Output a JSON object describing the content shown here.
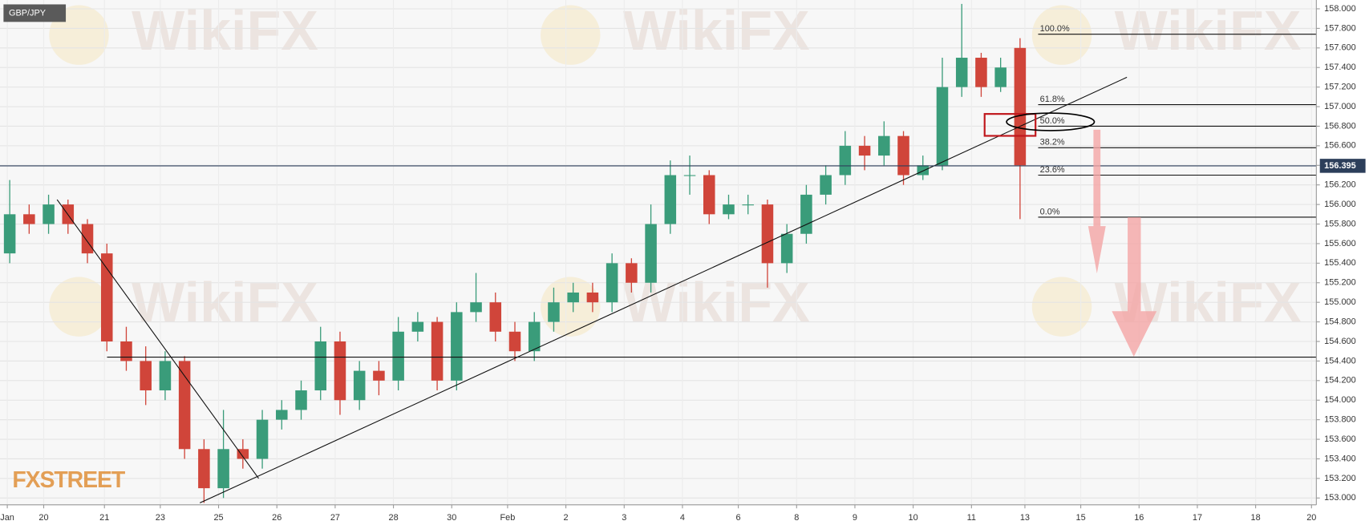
{
  "chart_data": {
    "type": "candlestick",
    "title": "GBP/JPY",
    "logo": "FXSTREET",
    "watermark": "WikiFX",
    "x": [
      4,
      12,
      20,
      28,
      36,
      44,
      52,
      60,
      68,
      76,
      84,
      92,
      100,
      108,
      116,
      124,
      132,
      140,
      148,
      156,
      164,
      172,
      180,
      188,
      196,
      204,
      212,
      220,
      228,
      236,
      244,
      252,
      260,
      268,
      276,
      284,
      292,
      300,
      308,
      316,
      324,
      332,
      340,
      348,
      356,
      364,
      372,
      380,
      388,
      396,
      404,
      412,
      420
    ],
    "open": [
      155.5,
      155.9,
      155.8,
      156.0,
      155.8,
      155.5,
      154.6,
      154.4,
      154.1,
      154.4,
      153.5,
      153.1,
      153.5,
      153.4,
      153.8,
      153.9,
      154.1,
      154.6,
      154.0,
      154.3,
      154.2,
      154.7,
      154.8,
      154.2,
      154.9,
      155.0,
      154.7,
      154.5,
      154.8,
      155.0,
      155.1,
      155.0,
      155.4,
      155.2,
      155.8,
      156.3,
      156.3,
      155.9,
      156.0,
      156.0,
      155.4,
      155.7,
      156.1,
      156.3,
      156.6,
      156.5,
      156.7,
      156.3,
      156.4,
      157.2,
      157.5,
      157.2,
      157.6
    ],
    "high": [
      156.25,
      156.0,
      156.1,
      156.05,
      155.85,
      155.6,
      154.75,
      154.55,
      154.5,
      154.45,
      153.6,
      153.9,
      153.6,
      153.9,
      154.0,
      154.2,
      154.75,
      154.7,
      154.4,
      154.4,
      154.85,
      154.9,
      154.85,
      155.0,
      155.3,
      155.1,
      154.8,
      154.9,
      155.15,
      155.2,
      155.2,
      155.5,
      155.45,
      156.0,
      156.45,
      156.5,
      156.35,
      156.1,
      156.1,
      156.05,
      155.8,
      156.2,
      156.4,
      156.75,
      156.7,
      156.85,
      156.75,
      156.5,
      157.5,
      158.05,
      157.55,
      157.5,
      157.7
    ],
    "low": [
      155.4,
      155.7,
      155.7,
      155.7,
      155.4,
      154.5,
      154.3,
      153.95,
      154.0,
      153.4,
      152.95,
      153.0,
      153.3,
      153.3,
      153.7,
      153.8,
      154.0,
      153.85,
      153.9,
      154.05,
      154.1,
      154.6,
      154.1,
      154.1,
      154.8,
      154.6,
      154.4,
      154.4,
      154.7,
      154.9,
      154.9,
      154.9,
      155.1,
      155.1,
      155.7,
      156.1,
      155.8,
      155.85,
      155.9,
      155.15,
      155.3,
      155.6,
      156.0,
      156.2,
      156.35,
      156.4,
      156.2,
      156.25,
      156.35,
      157.1,
      157.1,
      157.15,
      155.85
    ],
    "close": [
      155.9,
      155.8,
      156.0,
      155.8,
      155.5,
      154.6,
      154.4,
      154.1,
      154.4,
      153.5,
      153.1,
      153.5,
      153.4,
      153.8,
      153.9,
      154.1,
      154.6,
      154.0,
      154.3,
      154.2,
      154.7,
      154.8,
      154.2,
      154.9,
      155.0,
      154.7,
      154.5,
      154.8,
      155.0,
      155.1,
      155.0,
      155.4,
      155.2,
      155.8,
      156.3,
      156.3,
      155.9,
      156.0,
      156.0,
      155.4,
      155.7,
      156.1,
      156.3,
      156.6,
      156.5,
      156.7,
      156.3,
      156.4,
      157.2,
      157.5,
      157.2,
      157.4,
      156.4
    ],
    "up_color": "#3a9c7a",
    "down_color": "#d0453a",
    "xlim": [
      0,
      542
    ],
    "xticks": [
      {
        "value": 3,
        "label": "Jan"
      },
      {
        "value": 18,
        "label": "20"
      },
      {
        "value": 43,
        "label": "21"
      },
      {
        "value": 66,
        "label": "23"
      },
      {
        "value": 90,
        "label": "25"
      },
      {
        "value": 114,
        "label": "26"
      },
      {
        "value": 138,
        "label": "27"
      },
      {
        "value": 162,
        "label": "28"
      },
      {
        "value": 186,
        "label": "30"
      },
      {
        "value": 209,
        "label": "Feb"
      },
      {
        "value": 233,
        "label": "2"
      },
      {
        "value": 257,
        "label": "3"
      },
      {
        "value": 281,
        "label": "4"
      },
      {
        "value": 304,
        "label": "6"
      },
      {
        "value": 328,
        "label": "8"
      },
      {
        "value": 352,
        "label": "9"
      },
      {
        "value": 376,
        "label": "10"
      },
      {
        "value": 400,
        "label": "11"
      },
      {
        "value": 422,
        "label": "13"
      },
      {
        "value": 445,
        "label": "15"
      },
      {
        "value": 469,
        "label": "16"
      },
      {
        "value": 493,
        "label": "17"
      },
      {
        "value": 517,
        "label": "18"
      },
      {
        "value": 540,
        "label": "20"
      }
    ],
    "ylim": [
      152.93,
      158.09
    ],
    "yticks": [
      {
        "value": 153.0,
        "label": "153.000"
      },
      {
        "value": 153.2,
        "label": "153.200"
      },
      {
        "value": 153.4,
        "label": "153.400"
      },
      {
        "value": 153.6,
        "label": "153.600"
      },
      {
        "value": 153.8,
        "label": "153.800"
      },
      {
        "value": 154.0,
        "label": "154.000"
      },
      {
        "value": 154.2,
        "label": "154.200"
      },
      {
        "value": 154.4,
        "label": "154.400"
      },
      {
        "value": 154.6,
        "label": "154.600"
      },
      {
        "value": 154.8,
        "label": "154.800"
      },
      {
        "value": 155.0,
        "label": "155.000"
      },
      {
        "value": 155.2,
        "label": "155.200"
      },
      {
        "value": 155.4,
        "label": "155.400"
      },
      {
        "value": 155.6,
        "label": "155.600"
      },
      {
        "value": 155.8,
        "label": "155.800"
      },
      {
        "value": 156.0,
        "label": "156.000"
      },
      {
        "value": 156.2,
        "label": "156.200"
      },
      {
        "value": 156.4,
        "label": "156.400"
      },
      {
        "value": 156.6,
        "label": "156.600"
      },
      {
        "value": 156.8,
        "label": "156.800"
      },
      {
        "value": 157.0,
        "label": "157.000"
      },
      {
        "value": 157.2,
        "label": "157.200"
      },
      {
        "value": 157.4,
        "label": "157.400"
      },
      {
        "value": 157.6,
        "label": "157.600"
      },
      {
        "value": 157.8,
        "label": "157.800"
      },
      {
        "value": 158.0,
        "label": "158.000"
      }
    ],
    "grid": true,
    "current_price": {
      "value": 156.395,
      "label": "156.395"
    },
    "support": 154.44,
    "fib_levels": [
      {
        "value": 157.74,
        "label": "100.0%"
      },
      {
        "value": 157.02,
        "label": "61.8%"
      },
      {
        "value": 156.8,
        "label": "50.0%"
      },
      {
        "value": 156.58,
        "label": "38.2%"
      },
      {
        "value": 156.3,
        "label": "23.6%"
      },
      {
        "value": 155.87,
        "label": "0.0%"
      }
    ],
    "trendlines": [
      {
        "x": [
          23.5,
          106.5
        ],
        "y": [
          156.05,
          153.2
        ]
      },
      {
        "x": [
          82.3,
          464
        ],
        "y": [
          152.95,
          157.3
        ]
      }
    ]
  }
}
